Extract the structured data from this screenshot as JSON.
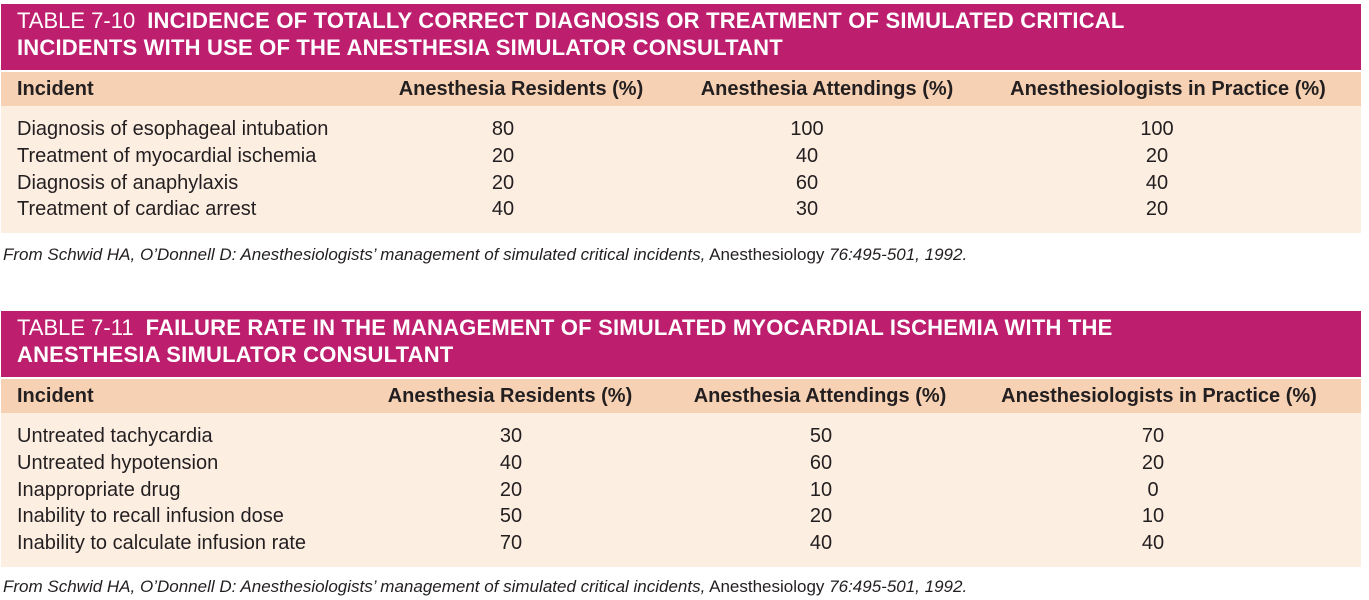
{
  "tables": [
    {
      "number": "TABLE 7-10",
      "title": "INCIDENCE OF TOTALLY CORRECT DIAGNOSIS OR TREATMENT OF SIMULATED CRITICAL INCIDENTS WITH USE OF THE ANESTHESIA SIMULATOR CONSULTANT",
      "title_line1": "INCIDENCE OF TOTALLY CORRECT DIAGNOSIS OR TREATMENT OF SIMULATED CRITICAL",
      "title_line2": "INCIDENTS WITH USE OF THE ANESTHESIA SIMULATOR CONSULTANT",
      "columns": [
        "Incident",
        "Anesthesia Residents (%)",
        "Anesthesia Attendings (%)",
        "Anesthesiologists in Practice (%)"
      ],
      "rows": [
        [
          "Diagnosis of esophageal intubation",
          "80",
          "100",
          "100"
        ],
        [
          "Treatment of myocardial ischemia",
          "20",
          "40",
          "20"
        ],
        [
          "Diagnosis of anaphylaxis",
          "20",
          "60",
          "40"
        ],
        [
          "Treatment of cardiac arrest",
          "40",
          "30",
          "20"
        ]
      ],
      "source": {
        "italic_part": "From Schwid HA, O’Donnell D: Anesthesiologists’ management of simulated critical incidents,",
        "plain_part": " Anesthesiology ",
        "citation": "76:495-501, 1992."
      }
    },
    {
      "number": "TABLE 7-11",
      "title": "FAILURE RATE IN THE MANAGEMENT OF SIMULATED MYOCARDIAL ISCHEMIA WITH THE ANESTHESIA SIMULATOR CONSULTANT",
      "title_line1": "FAILURE RATE IN THE MANAGEMENT OF SIMULATED MYOCARDIAL ISCHEMIA WITH THE",
      "title_line2": "ANESTHESIA SIMULATOR CONSULTANT",
      "columns": [
        "Incident",
        "Anesthesia Residents (%)",
        "Anesthesia Attendings (%)",
        "Anesthesiologists in Practice (%)"
      ],
      "rows": [
        [
          "Untreated tachycardia",
          "30",
          "50",
          "70"
        ],
        [
          "Untreated hypotension",
          "40",
          "60",
          "20"
        ],
        [
          "Inappropriate drug",
          "20",
          "10",
          "0"
        ],
        [
          "Inability to recall infusion dose",
          "50",
          "20",
          "10"
        ],
        [
          "Inability to calculate infusion rate",
          "70",
          "40",
          "40"
        ]
      ],
      "source": {
        "italic_part": "From Schwid HA, O’Donnell D: Anesthesiologists’ management of simulated critical incidents,",
        "plain_part": " Anesthesiology ",
        "citation": "76:495-501, 1992."
      }
    }
  ],
  "colors": {
    "title_bar": "#be1e6e",
    "header_row": "#f6d1b3",
    "body_rows": "#fdeee2"
  }
}
